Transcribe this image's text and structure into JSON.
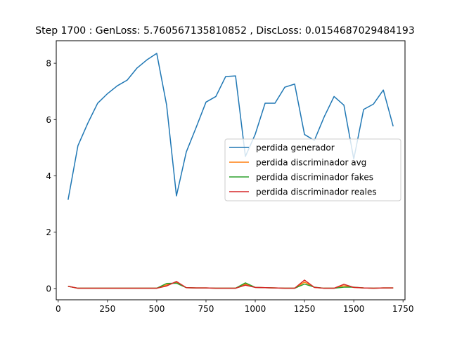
{
  "chart_data": {
    "type": "line",
    "title": "Step 1700 : GenLoss: 5.760567135810852 , DiscLoss: 0.0154687029484193",
    "xlabel": "",
    "ylabel": "",
    "xlim": [
      -10,
      1760
    ],
    "ylim": [
      -0.4,
      8.8
    ],
    "xticks": [
      0,
      250,
      500,
      750,
      1000,
      1250,
      1500,
      1750
    ],
    "yticks": [
      0,
      2,
      4,
      6,
      8
    ],
    "grid": false,
    "legend_loc": "center right",
    "x": [
      50,
      100,
      150,
      200,
      250,
      300,
      350,
      400,
      450,
      500,
      550,
      600,
      650,
      700,
      750,
      800,
      850,
      900,
      950,
      1000,
      1050,
      1100,
      1150,
      1200,
      1250,
      1300,
      1350,
      1400,
      1450,
      1500,
      1550,
      1600,
      1650,
      1700
    ],
    "series": [
      {
        "name": "perdida generador",
        "color": "#1f77b4",
        "values": [
          3.15,
          5.07,
          5.87,
          6.58,
          6.92,
          7.2,
          7.4,
          7.83,
          8.12,
          8.35,
          6.52,
          3.29,
          4.85,
          5.72,
          6.62,
          6.82,
          7.53,
          7.55,
          4.69,
          5.48,
          6.58,
          6.58,
          7.15,
          7.26,
          5.47,
          5.26,
          6.1,
          6.82,
          6.51,
          4.6,
          6.36,
          6.55,
          7.05,
          5.76
        ]
      },
      {
        "name": "perdida discriminador avg",
        "color": "#ff7f0e",
        "values": [
          0.08,
          0.01,
          0.01,
          0.01,
          0.01,
          0.01,
          0.01,
          0.01,
          0.01,
          0.01,
          0.13,
          0.22,
          0.03,
          0.02,
          0.02,
          0.01,
          0.01,
          0.01,
          0.16,
          0.04,
          0.03,
          0.02,
          0.01,
          0.01,
          0.23,
          0.04,
          0.01,
          0.01,
          0.1,
          0.04,
          0.02,
          0.01,
          0.02,
          0.02
        ]
      },
      {
        "name": "perdida discriminador fakes",
        "color": "#2ca02c",
        "values": [
          0.08,
          0.01,
          0.01,
          0.01,
          0.01,
          0.01,
          0.01,
          0.01,
          0.01,
          0.01,
          0.18,
          0.19,
          0.03,
          0.02,
          0.02,
          0.01,
          0.01,
          0.01,
          0.2,
          0.04,
          0.03,
          0.02,
          0.01,
          0.01,
          0.16,
          0.05,
          0.01,
          0.01,
          0.05,
          0.05,
          0.02,
          0.01,
          0.02,
          0.02
        ]
      },
      {
        "name": "perdida discriminador reales",
        "color": "#d62728",
        "values": [
          0.08,
          0.01,
          0.01,
          0.01,
          0.01,
          0.01,
          0.01,
          0.01,
          0.01,
          0.01,
          0.09,
          0.25,
          0.03,
          0.02,
          0.02,
          0.01,
          0.01,
          0.01,
          0.12,
          0.04,
          0.03,
          0.02,
          0.01,
          0.01,
          0.3,
          0.04,
          0.01,
          0.01,
          0.15,
          0.04,
          0.02,
          0.01,
          0.02,
          0.02
        ]
      }
    ]
  }
}
